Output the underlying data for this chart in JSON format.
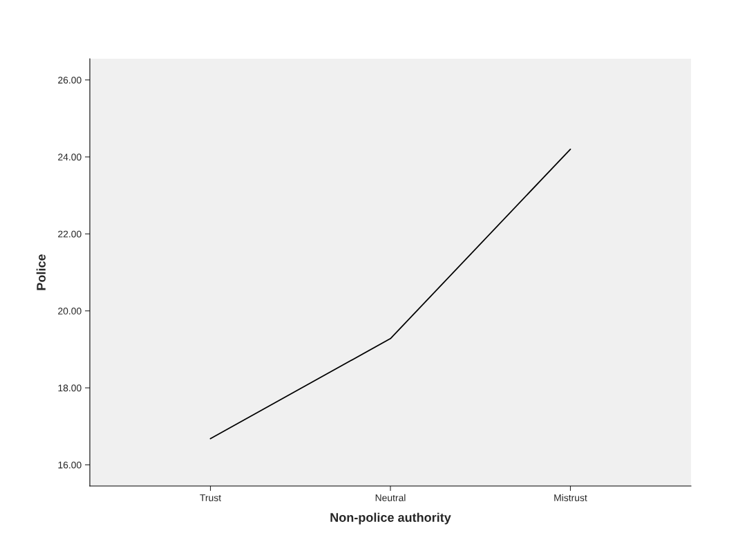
{
  "chart_data": {
    "type": "line",
    "xlabel": "Non-police authority",
    "ylabel": "Police",
    "categories": [
      "Trust",
      "Neutral",
      "Mistrust"
    ],
    "series": [
      {
        "color": "#000000",
        "values": [
          16.68,
          19.28,
          24.2
        ]
      }
    ],
    "ylim": [
      15.45,
      26.55
    ],
    "yticks": [
      {
        "value": 16,
        "label": "16.00"
      },
      {
        "value": 18,
        "label": "18.00"
      },
      {
        "value": 20,
        "label": "20.00"
      },
      {
        "value": 22,
        "label": "22.00"
      },
      {
        "value": 24,
        "label": "24.00"
      },
      {
        "value": 26,
        "label": "26.00"
      }
    ],
    "grid": false,
    "marker": "none",
    "line_style": "solid"
  }
}
